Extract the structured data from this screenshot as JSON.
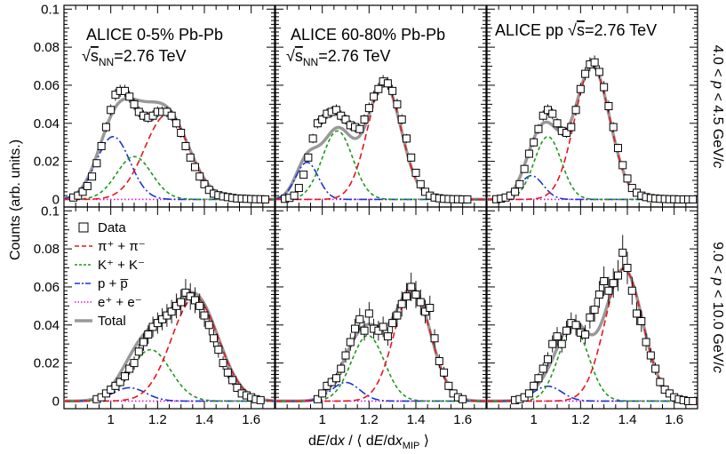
{
  "chart_data": {
    "type": "scatter",
    "xlabel": "dE/dx / ⟨ dE/dx_MIP ⟩",
    "ylabel": "Counts (arb. units.)",
    "xlim": [
      0.8,
      1.7
    ],
    "ylim": [
      -0.004,
      0.102
    ],
    "xticks": [
      "1",
      "1.2",
      "1.4",
      "1.6"
    ],
    "yticks": [
      "0",
      "0.02",
      "0.04",
      "0.06",
      "0.08",
      "0.1"
    ],
    "grid": false,
    "columns": [
      {
        "title": "ALICE 0-5% Pb-Pb",
        "energy": "√sNN=2.76 TeV"
      },
      {
        "title": "ALICE 60-80% Pb-Pb",
        "energy": "√sNN=2.76 TeV"
      },
      {
        "title": "ALICE pp  √s=2.76 TeV",
        "energy": ""
      }
    ],
    "rows": [
      "4.0 < p < 4.5 GeV/c",
      "9.0 < p < 10.0 GeV/c"
    ],
    "legend": {
      "position": "top-left of lower-left panel",
      "entries": [
        {
          "key": "data",
          "label": "Data"
        },
        {
          "key": "pion",
          "label": "π⁺ + π⁻"
        },
        {
          "key": "kaon",
          "label": "K⁺ + K⁻"
        },
        {
          "key": "proton",
          "label": "p + p̅"
        },
        {
          "key": "electron",
          "label": "e⁺ + e⁻"
        },
        {
          "key": "total",
          "label": "Total"
        }
      ]
    },
    "colors": {
      "pion": "#e8151b",
      "kaon": "#1b9a1b",
      "proton": "#1c33d6",
      "electron": "#e012e0",
      "total": "#999999",
      "data": "#000000"
    },
    "panels": [
      {
        "row": 0,
        "col": 0,
        "components": {
          "pion": {
            "amp": 0.0445,
            "mu": 1.24,
            "sigma": 0.095
          },
          "kaon": {
            "amp": 0.0225,
            "mu": 1.1,
            "sigma": 0.075
          },
          "proton": {
            "amp": 0.033,
            "mu": 1.01,
            "sigma": 0.072
          },
          "electron": {
            "amp": 0.0003,
            "mu": 1.5,
            "sigma": 0.05
          }
        },
        "data": [
          [
            0.84,
            0.001
          ],
          [
            0.86,
            0.002
          ],
          [
            0.88,
            0.004
          ],
          [
            0.9,
            0.007
          ],
          [
            0.92,
            0.012
          ],
          [
            0.94,
            0.019
          ],
          [
            0.96,
            0.028
          ],
          [
            0.98,
            0.038
          ],
          [
            1.0,
            0.047
          ],
          [
            1.02,
            0.055
          ],
          [
            1.04,
            0.057
          ],
          [
            1.06,
            0.057
          ],
          [
            1.08,
            0.054
          ],
          [
            1.1,
            0.05
          ],
          [
            1.12,
            0.046
          ],
          [
            1.14,
            0.044
          ],
          [
            1.16,
            0.043
          ],
          [
            1.18,
            0.044
          ],
          [
            1.2,
            0.046
          ],
          [
            1.22,
            0.046
          ],
          [
            1.24,
            0.046
          ],
          [
            1.26,
            0.044
          ],
          [
            1.28,
            0.04
          ],
          [
            1.3,
            0.035
          ],
          [
            1.32,
            0.028
          ],
          [
            1.34,
            0.022
          ],
          [
            1.36,
            0.017
          ],
          [
            1.38,
            0.012
          ],
          [
            1.4,
            0.008
          ],
          [
            1.42,
            0.005
          ],
          [
            1.44,
            0.003
          ],
          [
            1.46,
            0.0022
          ],
          [
            1.48,
            0.0016
          ],
          [
            1.5,
            0.0012
          ],
          [
            1.52,
            0.0008
          ],
          [
            1.54,
            0.0005
          ],
          [
            1.56,
            0.0004
          ],
          [
            1.58,
            0.0003
          ],
          [
            1.6,
            0.0002
          ],
          [
            1.62,
            0.0001
          ],
          [
            1.64,
            0.0001
          ],
          [
            1.66,
            0.0
          ]
        ]
      },
      {
        "row": 0,
        "col": 1,
        "components": {
          "pion": {
            "amp": 0.061,
            "mu": 1.265,
            "sigma": 0.072
          },
          "kaon": {
            "amp": 0.036,
            "mu": 1.065,
            "sigma": 0.065
          },
          "proton": {
            "amp": 0.0195,
            "mu": 0.935,
            "sigma": 0.048
          },
          "electron": {
            "amp": 0.0002,
            "mu": 1.5,
            "sigma": 0.05
          }
        },
        "data": [
          [
            0.84,
            0.0003
          ],
          [
            0.86,
            0.0008
          ],
          [
            0.88,
            0.002
          ],
          [
            0.9,
            0.006
          ],
          [
            0.92,
            0.013
          ],
          [
            0.94,
            0.022
          ],
          [
            0.96,
            0.032
          ],
          [
            0.98,
            0.04
          ],
          [
            1.0,
            0.042
          ],
          [
            1.02,
            0.045
          ],
          [
            1.04,
            0.046
          ],
          [
            1.06,
            0.047
          ],
          [
            1.08,
            0.044
          ],
          [
            1.1,
            0.042
          ],
          [
            1.12,
            0.039
          ],
          [
            1.14,
            0.038
          ],
          [
            1.16,
            0.037
          ],
          [
            1.18,
            0.042
          ],
          [
            1.2,
            0.048
          ],
          [
            1.22,
            0.054
          ],
          [
            1.24,
            0.058
          ],
          [
            1.26,
            0.062
          ],
          [
            1.28,
            0.061
          ],
          [
            1.3,
            0.057
          ],
          [
            1.32,
            0.05
          ],
          [
            1.34,
            0.042
          ],
          [
            1.36,
            0.032
          ],
          [
            1.38,
            0.022
          ],
          [
            1.4,
            0.014
          ],
          [
            1.42,
            0.008
          ],
          [
            1.44,
            0.004
          ],
          [
            1.46,
            0.002
          ],
          [
            1.48,
            0.001
          ],
          [
            1.5,
            0.0006
          ],
          [
            1.52,
            0.0003
          ],
          [
            1.54,
            0.0002
          ],
          [
            1.56,
            0.0001
          ],
          [
            1.58,
            0.0001
          ],
          [
            1.6,
            0.0
          ],
          [
            1.62,
            0.0
          ]
        ]
      },
      {
        "row": 0,
        "col": 2,
        "components": {
          "pion": {
            "amp": 0.07,
            "mu": 1.25,
            "sigma": 0.075
          },
          "kaon": {
            "amp": 0.033,
            "mu": 1.06,
            "sigma": 0.058
          },
          "proton": {
            "amp": 0.0125,
            "mu": 0.99,
            "sigma": 0.05
          },
          "electron": {
            "amp": 0.0002,
            "mu": 1.5,
            "sigma": 0.05
          }
        },
        "data": [
          [
            0.84,
            0.0001
          ],
          [
            0.86,
            0.0004
          ],
          [
            0.88,
            0.001
          ],
          [
            0.9,
            0.002
          ],
          [
            0.92,
            0.004
          ],
          [
            0.94,
            0.008
          ],
          [
            0.96,
            0.016
          ],
          [
            0.98,
            0.024
          ],
          [
            1.0,
            0.03
          ],
          [
            1.02,
            0.037
          ],
          [
            1.04,
            0.044
          ],
          [
            1.06,
            0.047
          ],
          [
            1.08,
            0.045
          ],
          [
            1.1,
            0.04
          ],
          [
            1.12,
            0.036
          ],
          [
            1.14,
            0.035
          ],
          [
            1.16,
            0.038
          ],
          [
            1.18,
            0.047
          ],
          [
            1.2,
            0.058
          ],
          [
            1.22,
            0.066
          ],
          [
            1.24,
            0.071
          ],
          [
            1.26,
            0.072
          ],
          [
            1.28,
            0.067
          ],
          [
            1.3,
            0.059
          ],
          [
            1.32,
            0.049
          ],
          [
            1.34,
            0.038
          ],
          [
            1.36,
            0.027
          ],
          [
            1.38,
            0.018
          ],
          [
            1.4,
            0.011
          ],
          [
            1.42,
            0.006
          ],
          [
            1.44,
            0.0035
          ],
          [
            1.46,
            0.002
          ],
          [
            1.48,
            0.0012
          ],
          [
            1.5,
            0.0007
          ],
          [
            1.52,
            0.0005
          ],
          [
            1.54,
            0.0003
          ],
          [
            1.56,
            0.0002
          ],
          [
            1.58,
            0.0001
          ],
          [
            1.6,
            0.0001
          ],
          [
            1.62,
            0.0
          ],
          [
            1.64,
            0.0
          ],
          [
            1.66,
            0.0
          ],
          [
            1.68,
            0.0
          ]
        ]
      },
      {
        "row": 1,
        "col": 0,
        "components": {
          "pion": {
            "amp": 0.0545,
            "mu": 1.36,
            "sigma": 0.1
          },
          "kaon": {
            "amp": 0.027,
            "mu": 1.17,
            "sigma": 0.085
          },
          "proton": {
            "amp": 0.007,
            "mu": 1.08,
            "sigma": 0.07
          },
          "electron": {
            "amp": 0.0001,
            "mu": 1.5,
            "sigma": 0.05
          }
        },
        "data": [
          [
            0.94,
            0.001
          ],
          [
            0.96,
            0.002
          ],
          [
            0.98,
            0.004
          ],
          [
            1.0,
            0.006
          ],
          [
            1.02,
            0.008
          ],
          [
            1.04,
            0.01
          ],
          [
            1.06,
            0.013
          ],
          [
            1.08,
            0.017
          ],
          [
            1.1,
            0.02
          ],
          [
            1.12,
            0.026
          ],
          [
            1.14,
            0.031
          ],
          [
            1.16,
            0.035
          ],
          [
            1.18,
            0.039
          ],
          [
            1.2,
            0.041
          ],
          [
            1.22,
            0.043
          ],
          [
            1.24,
            0.045
          ],
          [
            1.26,
            0.047
          ],
          [
            1.28,
            0.05
          ],
          [
            1.3,
            0.052
          ],
          [
            1.32,
            0.057
          ],
          [
            1.34,
            0.055
          ],
          [
            1.36,
            0.053
          ],
          [
            1.38,
            0.05
          ],
          [
            1.4,
            0.045
          ],
          [
            1.42,
            0.04
          ],
          [
            1.44,
            0.033
          ],
          [
            1.46,
            0.027
          ],
          [
            1.48,
            0.02
          ],
          [
            1.5,
            0.015
          ],
          [
            1.52,
            0.011
          ],
          [
            1.54,
            0.007
          ],
          [
            1.56,
            0.004
          ],
          [
            1.58,
            0.003
          ],
          [
            1.6,
            0.002
          ],
          [
            1.62,
            0.001
          ],
          [
            1.64,
            0.0005
          ]
        ]
      },
      {
        "row": 1,
        "col": 1,
        "components": {
          "pion": {
            "amp": 0.0585,
            "mu": 1.385,
            "sigma": 0.078
          },
          "kaon": {
            "amp": 0.0345,
            "mu": 1.195,
            "sigma": 0.07
          },
          "proton": {
            "amp": 0.0098,
            "mu": 1.1,
            "sigma": 0.06
          },
          "electron": {
            "amp": 0.0001,
            "mu": 1.5,
            "sigma": 0.05
          }
        },
        "data": [
          [
            0.98,
            0.001
          ],
          [
            1.0,
            0.004
          ],
          [
            1.02,
            0.008
          ],
          [
            1.04,
            0.01
          ],
          [
            1.06,
            0.012
          ],
          [
            1.08,
            0.017
          ],
          [
            1.1,
            0.024
          ],
          [
            1.12,
            0.031
          ],
          [
            1.14,
            0.038
          ],
          [
            1.16,
            0.043
          ],
          [
            1.18,
            0.037
          ],
          [
            1.2,
            0.046
          ],
          [
            1.22,
            0.038
          ],
          [
            1.24,
            0.037
          ],
          [
            1.26,
            0.039
          ],
          [
            1.28,
            0.034
          ],
          [
            1.3,
            0.041
          ],
          [
            1.32,
            0.045
          ],
          [
            1.34,
            0.051
          ],
          [
            1.36,
            0.055
          ],
          [
            1.38,
            0.06
          ],
          [
            1.4,
            0.056
          ],
          [
            1.42,
            0.052
          ],
          [
            1.44,
            0.047
          ],
          [
            1.46,
            0.049
          ],
          [
            1.48,
            0.033
          ],
          [
            1.5,
            0.021
          ],
          [
            1.52,
            0.015
          ],
          [
            1.54,
            0.008
          ],
          [
            1.56,
            0.004
          ],
          [
            1.58,
            0.002
          ],
          [
            1.6,
            0.001
          ]
        ]
      },
      {
        "row": 1,
        "col": 2,
        "components": {
          "pion": {
            "amp": 0.0695,
            "mu": 1.385,
            "sigma": 0.08
          },
          "kaon": {
            "amp": 0.0385,
            "mu": 1.17,
            "sigma": 0.065
          },
          "proton": {
            "amp": 0.0078,
            "mu": 1.06,
            "sigma": 0.06
          },
          "electron": {
            "amp": 0.0001,
            "mu": 1.5,
            "sigma": 0.05
          }
        },
        "data": [
          [
            0.92,
            0.0005
          ],
          [
            0.94,
            0.001
          ],
          [
            0.96,
            0.002
          ],
          [
            0.98,
            0.004
          ],
          [
            1.0,
            0.008
          ],
          [
            1.02,
            0.012
          ],
          [
            1.04,
            0.017
          ],
          [
            1.06,
            0.022
          ],
          [
            1.08,
            0.03
          ],
          [
            1.1,
            0.034
          ],
          [
            1.12,
            0.03
          ],
          [
            1.14,
            0.037
          ],
          [
            1.16,
            0.041
          ],
          [
            1.18,
            0.04
          ],
          [
            1.2,
            0.036
          ],
          [
            1.22,
            0.035
          ],
          [
            1.24,
            0.044
          ],
          [
            1.26,
            0.048
          ],
          [
            1.28,
            0.056
          ],
          [
            1.3,
            0.063
          ],
          [
            1.32,
            0.058
          ],
          [
            1.34,
            0.062
          ],
          [
            1.36,
            0.066
          ],
          [
            1.38,
            0.078
          ],
          [
            1.4,
            0.07
          ],
          [
            1.42,
            0.058
          ],
          [
            1.44,
            0.046
          ],
          [
            1.46,
            0.042
          ],
          [
            1.48,
            0.031
          ],
          [
            1.5,
            0.024
          ],
          [
            1.52,
            0.017
          ],
          [
            1.54,
            0.01
          ],
          [
            1.56,
            0.006
          ],
          [
            1.58,
            0.004
          ],
          [
            1.6,
            0.002
          ],
          [
            1.62,
            0.001
          ],
          [
            1.64,
            0.0005
          ],
          [
            1.66,
            0.0
          ],
          [
            1.68,
            0.0
          ]
        ]
      }
    ]
  }
}
